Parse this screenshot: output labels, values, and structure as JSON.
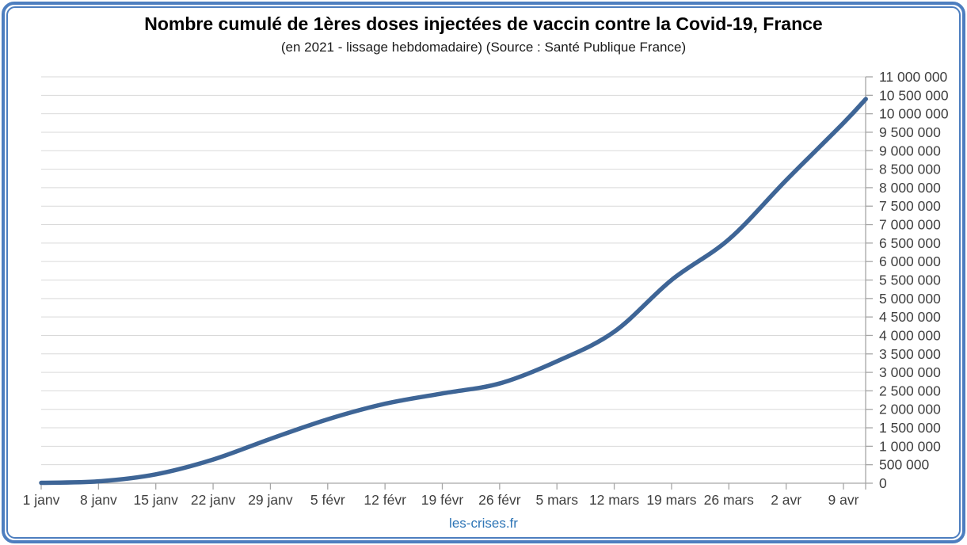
{
  "chart_data": {
    "type": "line",
    "title": "Nombre cumulé de 1ères doses injectées de vaccin contre la Covid-19, France",
    "subtitle": "(en 2021 - lissage hebdomadaire) (Source : Santé Publique France)",
    "footer_link": "les-crises.fr",
    "x_tick_labels": [
      "1 janv",
      "8 janv",
      "15 janv",
      "22 janv",
      "29 janv",
      "5 févr",
      "12 févr",
      "19 févr",
      "26 févr",
      "5 mars",
      "12 mars",
      "19 mars",
      "26 mars",
      "2 avr",
      "9 avr"
    ],
    "y_axis": {
      "min": 0,
      "max": 11000000,
      "step": 500000,
      "side": "right",
      "number_format": "space-grouped"
    },
    "grid": "horizontal-only",
    "legend": "none",
    "series": [
      {
        "name": "Nombre cumulé de 1ères doses",
        "color": "#3E6596",
        "points_week_value": [
          [
            0,
            10000
          ],
          [
            1,
            50000
          ],
          [
            2,
            240000
          ],
          [
            3,
            640000
          ],
          [
            4,
            1200000
          ],
          [
            5,
            1730000
          ],
          [
            6,
            2150000
          ],
          [
            7,
            2430000
          ],
          [
            8,
            2700000
          ],
          [
            9,
            3300000
          ],
          [
            10,
            4100000
          ],
          [
            11,
            5500000
          ],
          [
            12,
            6600000
          ],
          [
            13,
            8200000
          ],
          [
            14,
            9750000
          ],
          [
            14.39,
            10400000
          ]
        ]
      }
    ],
    "colors": {
      "line": "#3E6596",
      "grid": "#D9D9D9",
      "axis": "#A6A6A6",
      "tick_label": "#404040",
      "frame_border": "#4d7ebf",
      "footer_link": "#2E75B6"
    }
  }
}
